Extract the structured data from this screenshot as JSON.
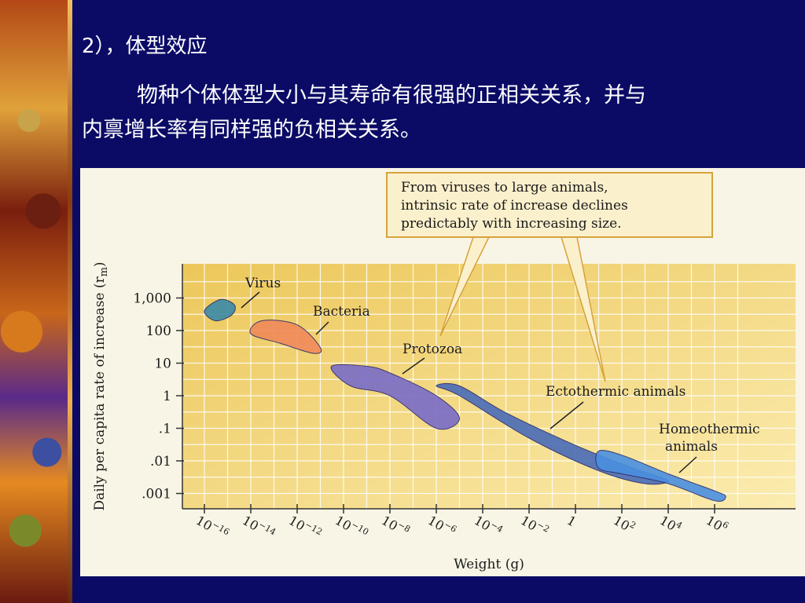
{
  "slide": {
    "title": "2），体型效应",
    "body_line1": "物种个体体型大小与其寿命有很强的正相关关系，并与",
    "body_line2": "内禀增长率有同样强的负相关关系。"
  },
  "figure": {
    "callout_lines": [
      "From viruses to large animals,",
      "intrinsic rate of increase declines",
      "predictably with increasing size."
    ]
  },
  "colors": {
    "slide_background": "#0b0b66",
    "plot_background": "#f3dc86",
    "virus": "#3a8aa8",
    "bacteria": "#f08a5a",
    "protozoa": "#7a6cc8",
    "ectothermic": "#4a6cb8",
    "homeothermic": "#4a90e0"
  },
  "chart_data": {
    "type": "scatter",
    "xlabel": "Weight (g)",
    "ylabel": "Daily per capita rate of increase (r",
    "ylabel_sub": "m",
    "ylabel_close": ")",
    "x_scale": "log",
    "y_scale": "log",
    "x_ticks": [
      {
        "base": "10",
        "exp": "−16",
        "value": 1e-16
      },
      {
        "base": "10",
        "exp": "−14",
        "value": 1e-14
      },
      {
        "base": "10",
        "exp": "−12",
        "value": 1e-12
      },
      {
        "base": "10",
        "exp": "−10",
        "value": 1e-10
      },
      {
        "base": "10",
        "exp": "−8",
        "value": 1e-08
      },
      {
        "base": "10",
        "exp": "−6",
        "value": 1e-06
      },
      {
        "base": "10",
        "exp": "−4",
        "value": 0.0001
      },
      {
        "base": "10",
        "exp": "−2",
        "value": 0.01
      },
      {
        "base": "1",
        "exp": "",
        "value": 1
      },
      {
        "base": "10",
        "exp": "2",
        "value": 100
      },
      {
        "base": "10",
        "exp": "4",
        "value": 10000
      },
      {
        "base": "10",
        "exp": "6",
        "value": 1000000
      }
    ],
    "y_ticks": [
      {
        "label": "1,000",
        "value": 1000
      },
      {
        "label": "100",
        "value": 100
      },
      {
        "label": "10",
        "value": 10
      },
      {
        "label": "1",
        "value": 1
      },
      {
        "label": ".1",
        "value": 0.1
      },
      {
        "label": ".01",
        "value": 0.01
      },
      {
        "label": ".001",
        "value": 0.001
      }
    ],
    "grid": true,
    "regions": [
      {
        "name": "Virus",
        "label_lines": [
          "Virus"
        ],
        "color_key": "virus",
        "points": [
          [
            1e-16,
            400
          ],
          [
            3e-16,
            200
          ],
          [
            1.5e-15,
            300
          ],
          [
            2e-15,
            600
          ],
          [
            5e-16,
            900
          ]
        ]
      },
      {
        "name": "Bacteria",
        "label_lines": [
          "Bacteria"
        ],
        "color_key": "bacteria",
        "points": [
          [
            1e-14,
            80
          ],
          [
            2e-13,
            40
          ],
          [
            5e-12,
            20
          ],
          [
            1e-11,
            30
          ],
          [
            1e-12,
            150
          ],
          [
            3e-14,
            200
          ]
        ]
      },
      {
        "name": "Protozoa",
        "label_lines": [
          "Protozoa"
        ],
        "color_key": "protozoa",
        "points": [
          [
            3e-11,
            8
          ],
          [
            2e-10,
            2
          ],
          [
            1e-08,
            1
          ],
          [
            1e-06,
            0.1
          ],
          [
            1e-05,
            0.2
          ],
          [
            1e-06,
            1
          ],
          [
            1e-08,
            5
          ],
          [
            1e-09,
            8
          ]
        ]
      },
      {
        "name": "Ectothermic animals",
        "label_lines": [
          "Ectothermic animals"
        ],
        "color_key": "ectothermic",
        "points": [
          [
            1e-06,
            2
          ],
          [
            1e-05,
            1
          ],
          [
            0.01,
            0.05
          ],
          [
            10,
            0.005
          ],
          [
            1000,
            0.002
          ],
          [
            10000,
            0.0025
          ],
          [
            300,
            0.006
          ],
          [
            1,
            0.03
          ],
          [
            0.001,
            0.3
          ],
          [
            1e-05,
            2
          ]
        ]
      },
      {
        "name": "Homeothermic animals",
        "label_lines": [
          "Homeothermic",
          "animals"
        ],
        "color_key": "homeothermic",
        "points": [
          [
            10,
            0.02
          ],
          [
            100,
            0.015
          ],
          [
            10000.0,
            0.004
          ],
          [
            1000000.0,
            0.0012
          ],
          [
            3000000.0,
            0.0008
          ],
          [
            1000000.0,
            0.0006
          ],
          [
            10000.0,
            0.002
          ],
          [
            100,
            0.004
          ],
          [
            10,
            0.006
          ]
        ]
      }
    ]
  }
}
